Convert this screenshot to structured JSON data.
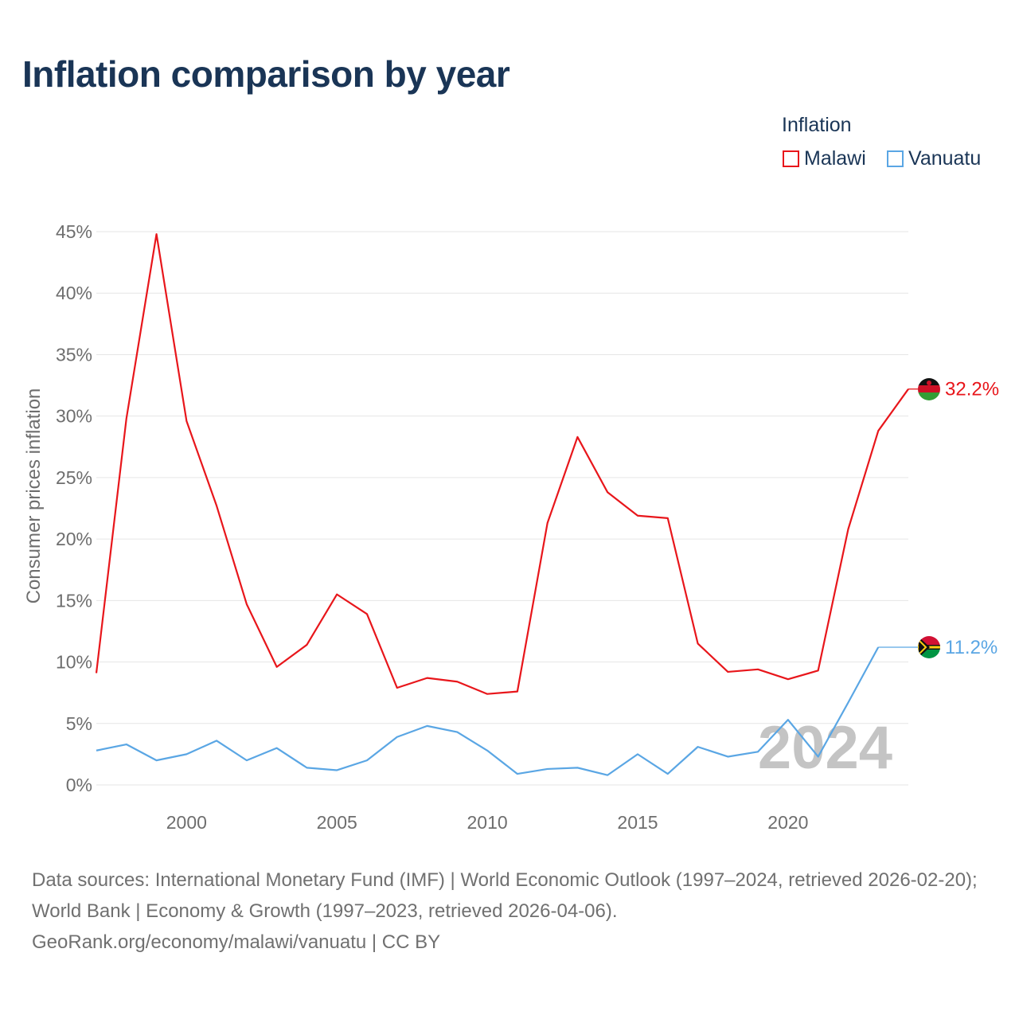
{
  "title": "Inflation comparison by year",
  "legend": {
    "title": "Inflation",
    "items": [
      {
        "label": "Malawi",
        "color": "#e8161b"
      },
      {
        "label": "Vanuatu",
        "color": "#5aa6e4"
      }
    ]
  },
  "watermark": "2024",
  "footer": {
    "sources": "Data sources: International Monetary Fund (IMF) | World Economic Outlook (1997–2024, retrieved 2026-02-20); World Bank | Economy & Growth (1997–2023, retrieved 2026-04-06).",
    "credit": "GeoRank.org/economy/malawi/vanuatu | CC BY"
  },
  "chart_data": {
    "type": "line",
    "title": "Inflation comparison by year",
    "xlabel": "",
    "ylabel": "Consumer prices inflation",
    "xlim": [
      1997,
      2024
    ],
    "ylim": [
      0,
      45
    ],
    "x_ticks": [
      2000,
      2005,
      2010,
      2015,
      2020
    ],
    "y_ticks": [
      0,
      5,
      10,
      15,
      20,
      25,
      30,
      35,
      40,
      45
    ],
    "y_tick_labels": [
      "0%",
      "5%",
      "10%",
      "15%",
      "20%",
      "25%",
      "30%",
      "35%",
      "40%",
      "45%"
    ],
    "x": [
      1997,
      1998,
      1999,
      2000,
      2001,
      2002,
      2003,
      2004,
      2005,
      2006,
      2007,
      2008,
      2009,
      2010,
      2011,
      2012,
      2013,
      2014,
      2015,
      2016,
      2017,
      2018,
      2019,
      2020,
      2021,
      2022,
      2023,
      2024
    ],
    "series": [
      {
        "name": "Malawi",
        "color": "#e8161b",
        "end_label": "32.2%",
        "values": [
          9.1,
          29.8,
          44.8,
          29.6,
          22.7,
          14.7,
          9.6,
          11.4,
          15.5,
          13.9,
          7.9,
          8.7,
          8.4,
          7.4,
          7.6,
          21.3,
          28.3,
          23.8,
          21.9,
          21.7,
          11.5,
          9.2,
          9.4,
          8.6,
          9.3,
          20.8,
          28.8,
          32.2
        ]
      },
      {
        "name": "Vanuatu",
        "color": "#5aa6e4",
        "end_label": "11.2%",
        "values": [
          2.8,
          3.3,
          2.0,
          2.5,
          3.6,
          2.0,
          3.0,
          1.4,
          1.2,
          2.0,
          3.9,
          4.8,
          4.3,
          2.8,
          0.9,
          1.3,
          1.4,
          0.8,
          2.5,
          0.9,
          3.1,
          2.3,
          2.7,
          5.3,
          2.3,
          6.7,
          11.2,
          null
        ]
      }
    ]
  }
}
